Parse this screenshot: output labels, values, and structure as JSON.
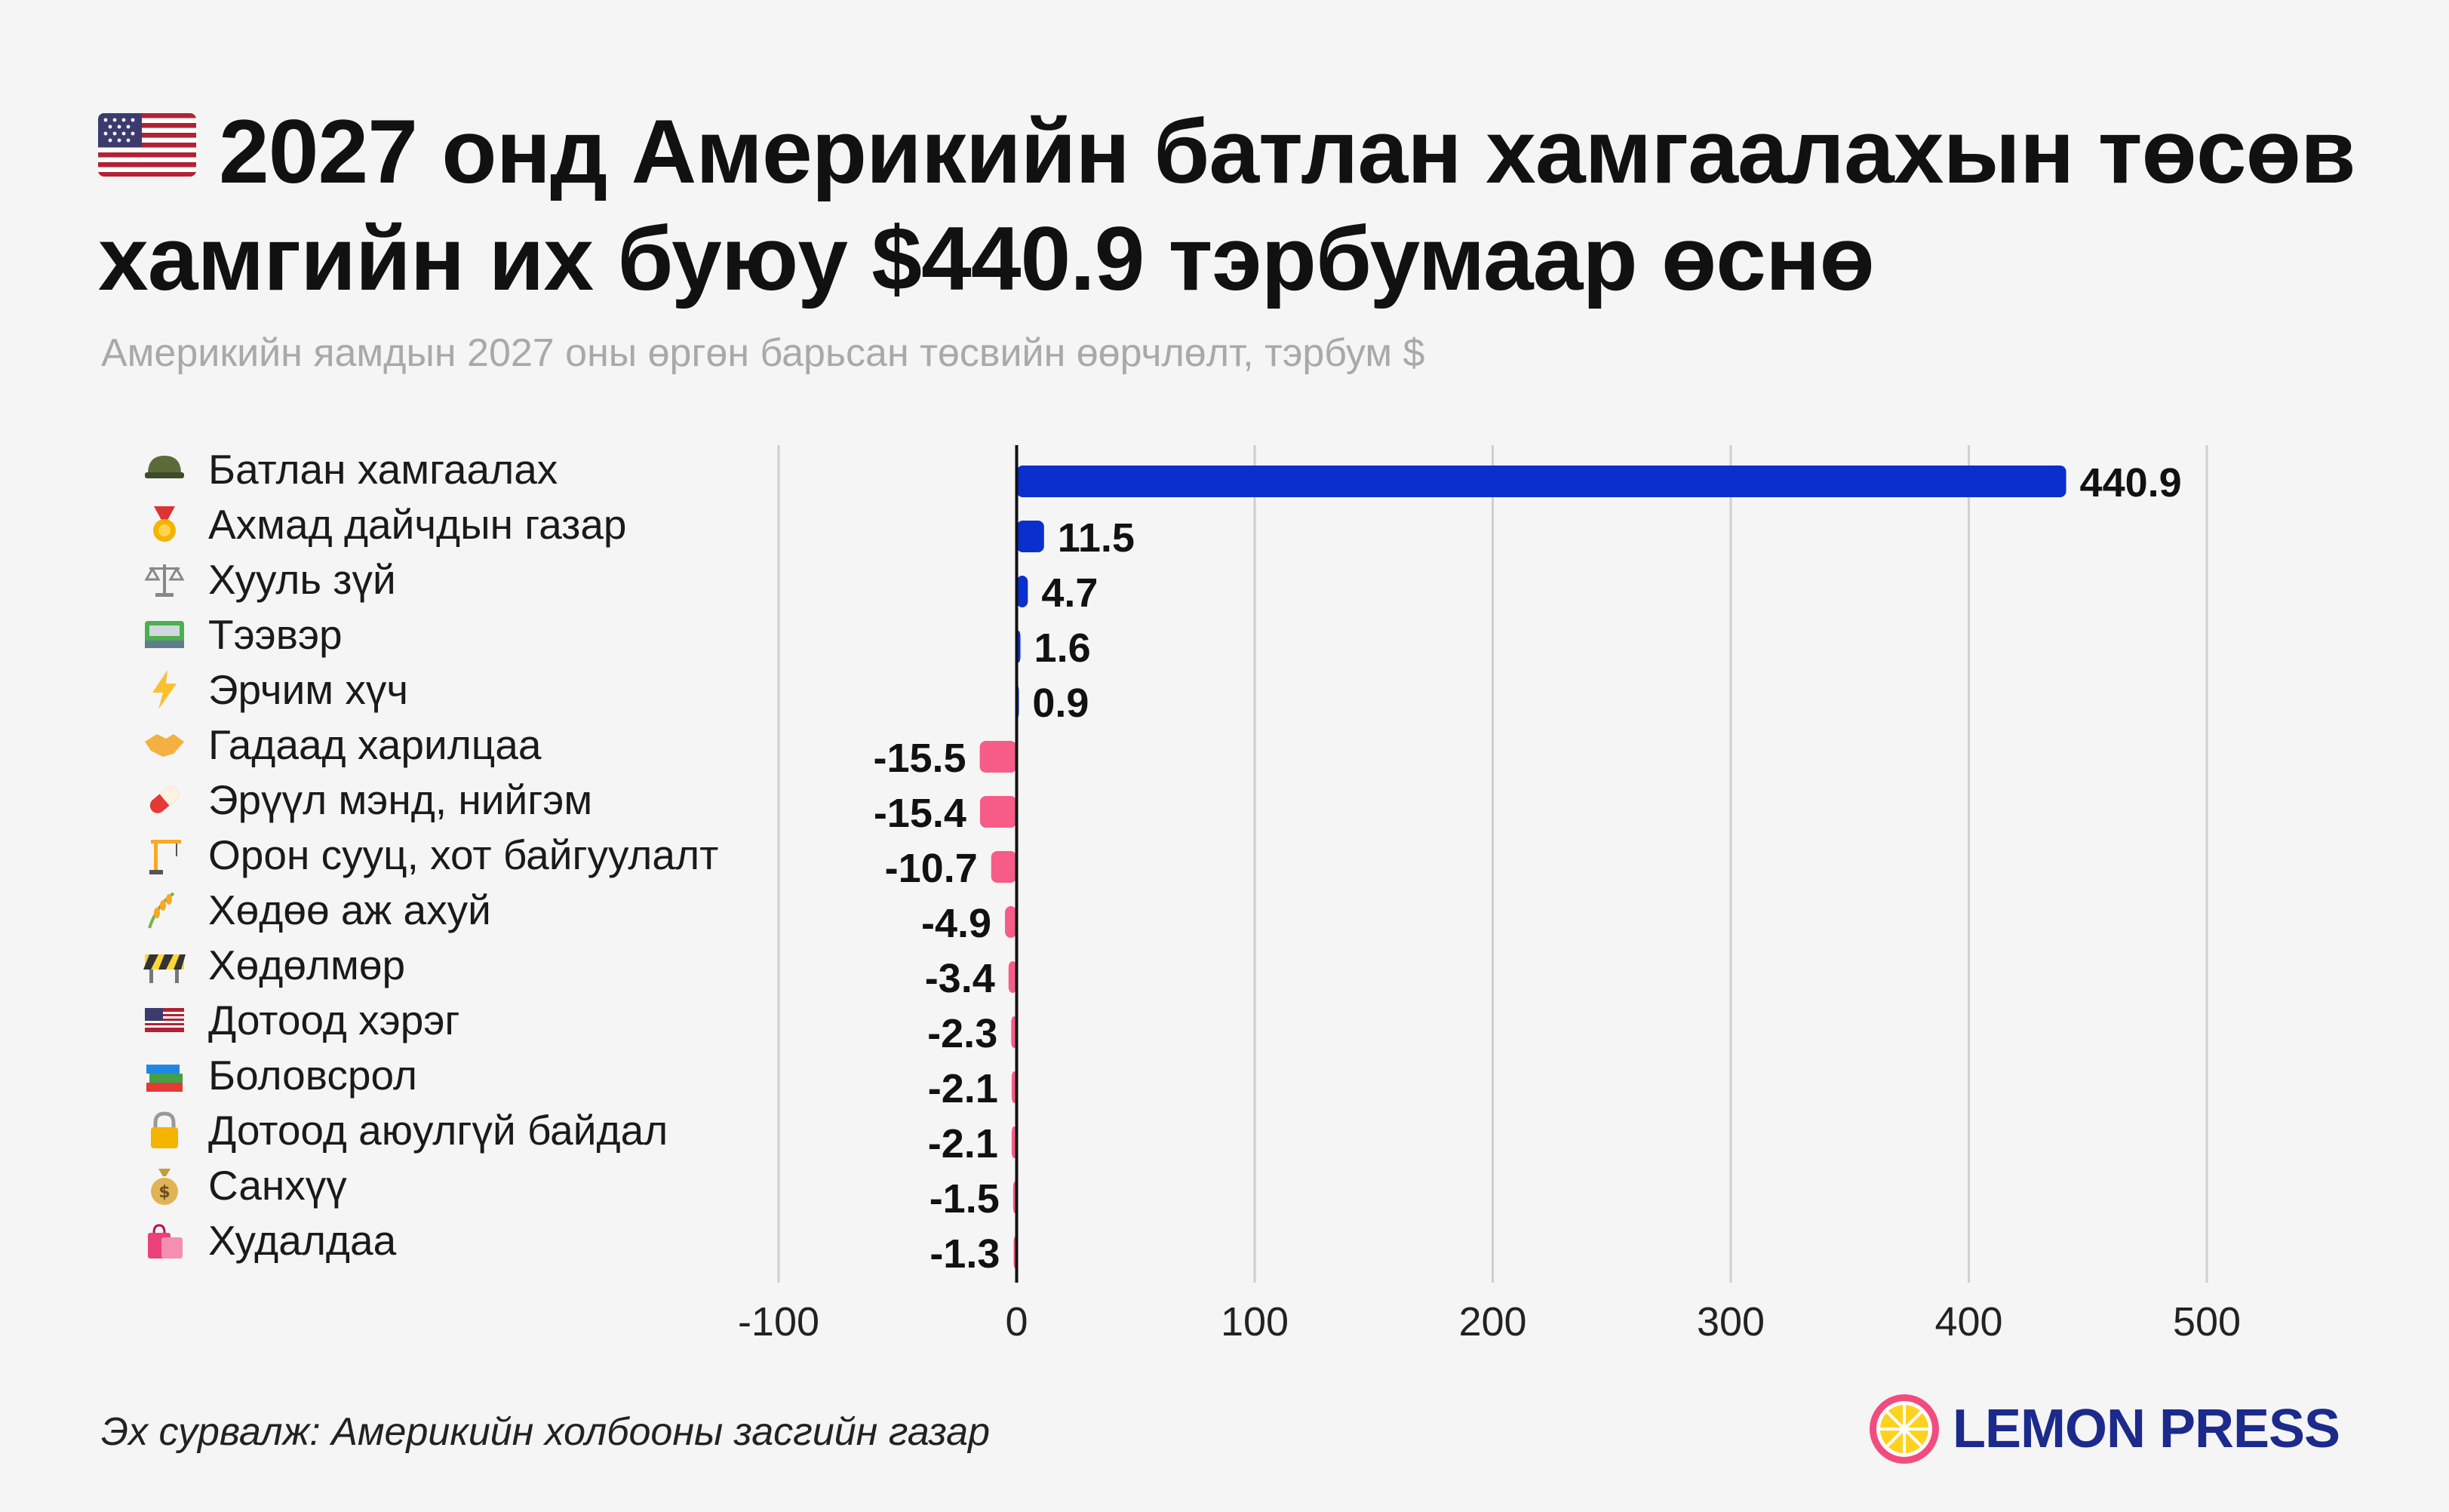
{
  "header": {
    "title": "2027 онд Америкийн батлан хамгаалахын төсөв хамгийн их буюу $440.9 тэрбумаар өснө",
    "subtitle": "Америкийн яамдын 2027 оны өргөн барьсан төсвийн өөрчлөлт, тэрбум $",
    "flag_icon": "us-flag-icon"
  },
  "chart_data": {
    "type": "bar",
    "orientation": "horizontal",
    "title": "2027 онд Америкийн батлан хамгаалахын төсөв хамгийн их буюу $440.9 тэрбумаар өснө",
    "subtitle": "Америкийн яамдын 2027 оны өргөн барьсан төсвийн өөрчлөлт, тэрбум $",
    "xlabel": "",
    "ylabel": "",
    "xlim": [
      -100,
      500
    ],
    "ticks": [
      -100,
      0,
      100,
      200,
      300,
      400,
      500
    ],
    "grid": true,
    "legend": "none",
    "colors": {
      "positive": "#0a2fcc",
      "negative": "#f65c86"
    },
    "categories": [
      "Батлан хамгаалах",
      "Ахмад дайчдын газар",
      "Хууль зүй",
      "Тээвэр",
      "Эрчим хүч",
      "Гадаад харилцаа",
      "Эрүүл мэнд, нийгэм",
      "Орон сууц, хот байгуулалт",
      "Хөдөө аж ахуй",
      "Хөдөлмөр",
      "Дотоод хэрэг",
      "Боловсрол",
      "Дотоод аюулгүй байдал",
      "Санхүү",
      "Худалдаа"
    ],
    "values": [
      440.9,
      11.5,
      4.7,
      1.6,
      0.9,
      -15.5,
      -15.4,
      -10.7,
      -4.9,
      -3.4,
      -2.3,
      -2.1,
      -2.1,
      -1.5,
      -1.3
    ],
    "value_labels": [
      "440.9",
      "11.5",
      "4.7",
      "1.6",
      "0.9",
      "-15.5",
      "-15.4",
      "-10.7",
      "-4.9",
      "-3.4",
      "-2.3",
      "-2.1",
      "-2.1",
      "-1.5",
      "-1.3"
    ],
    "icons": [
      "helmet-icon",
      "medal-icon",
      "scales-icon",
      "railway-icon",
      "lightning-icon",
      "handshake-icon",
      "pill-icon",
      "crane-icon",
      "rice-icon",
      "construction-barrier-icon",
      "us-flag-icon",
      "books-icon",
      "lock-icon",
      "money-bag-icon",
      "shopping-bags-icon"
    ]
  },
  "footer": {
    "source": "Эх сурвалж: Америкийн холбооны засгийн газар",
    "brand": "LEMON PRESS",
    "brand_icon": "lemon-icon"
  }
}
